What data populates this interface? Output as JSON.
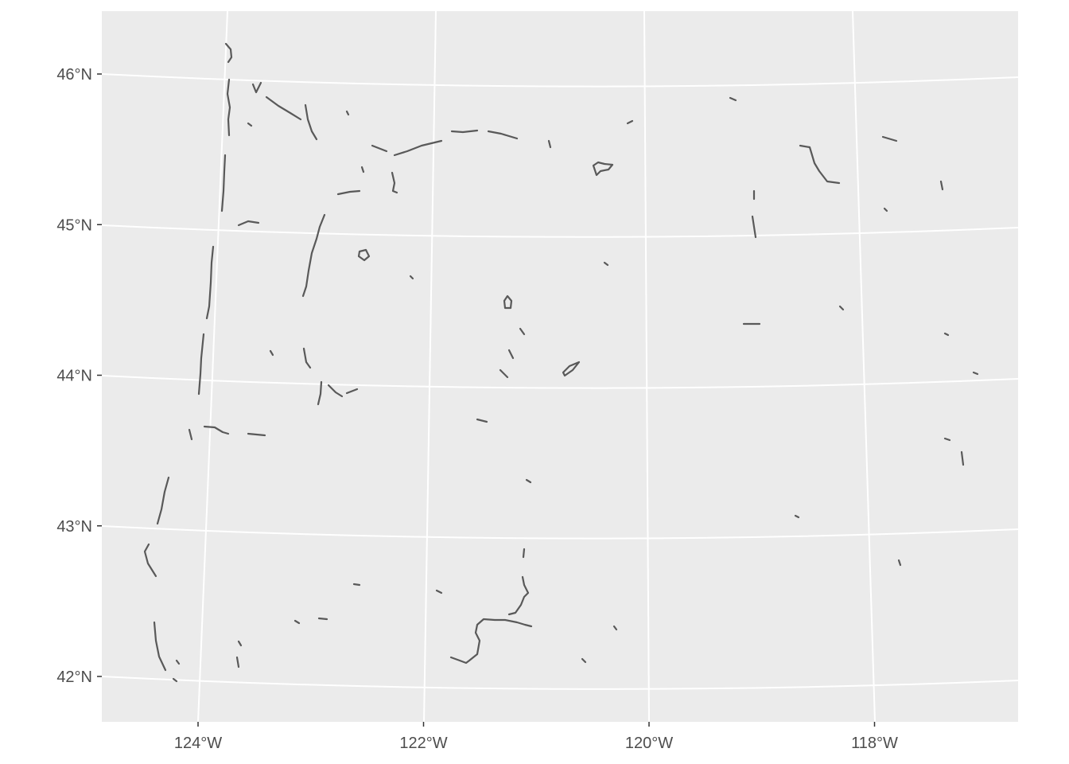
{
  "map": {
    "panel_background": "#ebebeb",
    "graticule_color": "#ffffff",
    "feature_color": "#595959",
    "x_axis": {
      "ticks": [
        {
          "value": -124,
          "label": "124°W"
        },
        {
          "value": -122,
          "label": "122°W"
        },
        {
          "value": -120,
          "label": "120°W"
        },
        {
          "value": -118,
          "label": "118°W"
        }
      ]
    },
    "y_axis": {
      "ticks": [
        {
          "value": 46,
          "label": "46°N"
        },
        {
          "value": 45,
          "label": "45°N"
        },
        {
          "value": 44,
          "label": "44°N"
        },
        {
          "value": 43,
          "label": "43°N"
        },
        {
          "value": 42,
          "label": "42°N"
        }
      ]
    },
    "features": "water-body outlines (rivers, reservoirs, lakes)"
  }
}
